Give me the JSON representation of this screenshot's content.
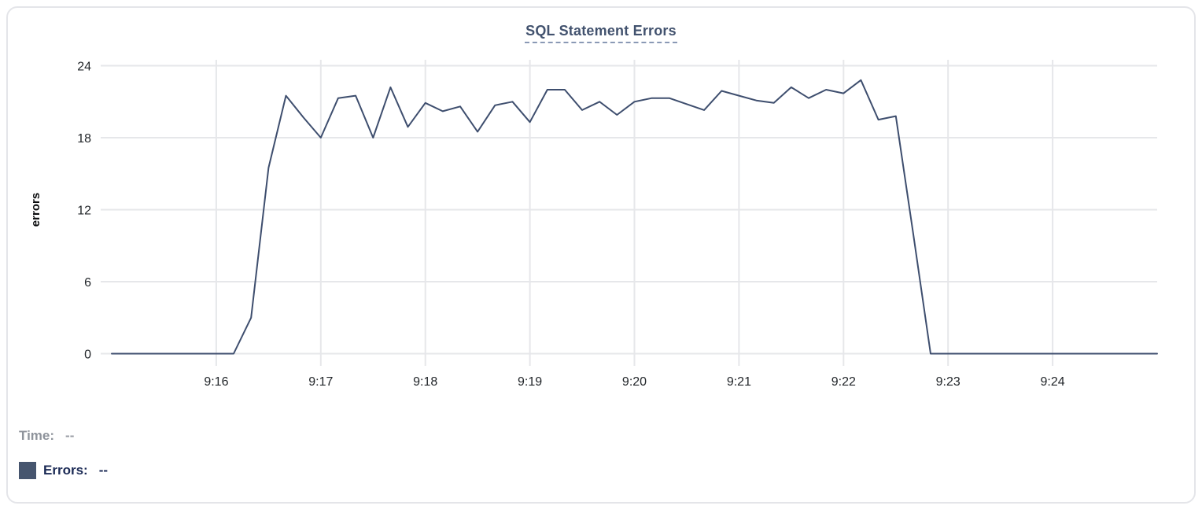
{
  "chart_data": {
    "type": "line",
    "title": "SQL Statement Errors",
    "ylabel": "errors",
    "xlabel": "",
    "ylim": [
      0,
      24
    ],
    "y_ticks": [
      0,
      6,
      12,
      18,
      24
    ],
    "x_tick_labels": [
      "9:16",
      "9:17",
      "9:18",
      "9:19",
      "9:20",
      "9:21",
      "9:22",
      "9:23",
      "9:24"
    ],
    "x_start": "9:15:00",
    "x_end": "9:25:00",
    "sample_interval_seconds": 10,
    "grid": true,
    "legend_position": "bottom-left",
    "series": [
      {
        "name": "Errors",
        "color": "#3e4e6e",
        "values": [
          0,
          0,
          0,
          0,
          0,
          0,
          0,
          0,
          3,
          15.5,
          21.5,
          19.7,
          18,
          21.3,
          21.5,
          18,
          22.2,
          18.9,
          20.9,
          20.2,
          20.6,
          18.5,
          20.7,
          21,
          19.3,
          22,
          22,
          20.3,
          21,
          19.9,
          21,
          21.3,
          21.3,
          20.8,
          20.3,
          21.9,
          21.5,
          21.1,
          20.9,
          22.2,
          21.3,
          22,
          21.7,
          22.8,
          19.5,
          19.8,
          10,
          0,
          0,
          0,
          0,
          0,
          0,
          0,
          0,
          0,
          0,
          0,
          0,
          0,
          0
        ]
      }
    ]
  },
  "legend": {
    "time_label": "Time:",
    "time_value": "--",
    "errors_label": "Errors:",
    "errors_value": "--",
    "swatch_color": "#46556e"
  },
  "colors": {
    "title": "#42526e",
    "title_underline": "#8a99b5",
    "line": "#3e4e6e",
    "grid": "#e6e7ea",
    "tick_text": "#212529",
    "time_label": "#8e939b",
    "errors_label": "#1b2a55",
    "card_border": "#e4e5e9"
  }
}
